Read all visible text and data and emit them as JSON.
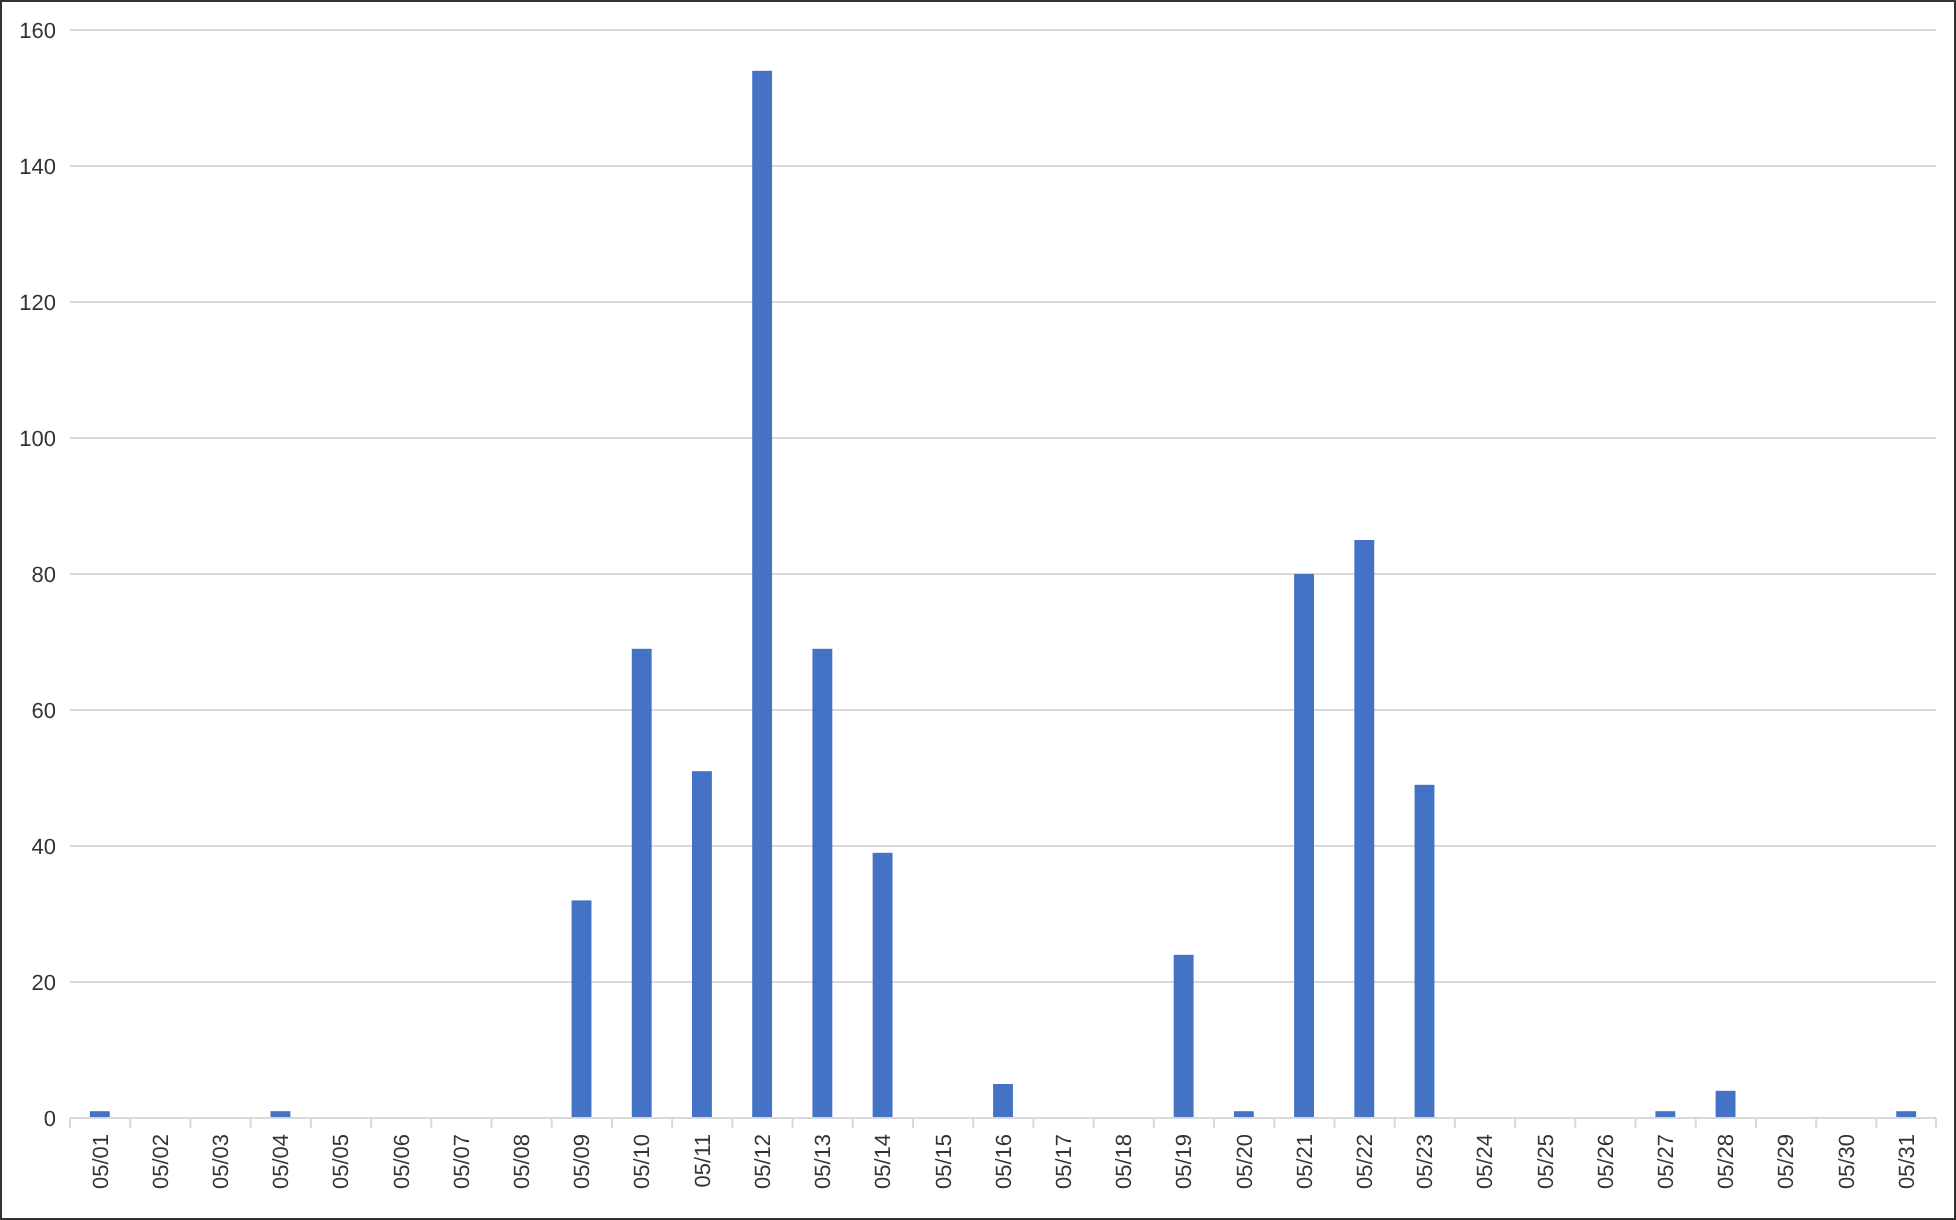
{
  "chart_data": {
    "type": "bar",
    "categories": [
      "05/01",
      "05/02",
      "05/03",
      "05/04",
      "05/05",
      "05/06",
      "05/07",
      "05/08",
      "05/09",
      "05/10",
      "05/11",
      "05/12",
      "05/13",
      "05/14",
      "05/15",
      "05/16",
      "05/17",
      "05/18",
      "05/19",
      "05/20",
      "05/21",
      "05/22",
      "05/23",
      "05/24",
      "05/25",
      "05/26",
      "05/27",
      "05/28",
      "05/29",
      "05/30",
      "05/31"
    ],
    "values": [
      1,
      0,
      0,
      1,
      0,
      0,
      0,
      0,
      32,
      69,
      51,
      154,
      69,
      39,
      0,
      5,
      0,
      0,
      24,
      1,
      80,
      85,
      49,
      0,
      0,
      0,
      1,
      4,
      0,
      0,
      1
    ],
    "color": "#4472c4",
    "ylim": [
      0,
      160
    ],
    "yticks": [
      0,
      20,
      40,
      60,
      80,
      100,
      120,
      140,
      160
    ],
    "grid": "y"
  }
}
